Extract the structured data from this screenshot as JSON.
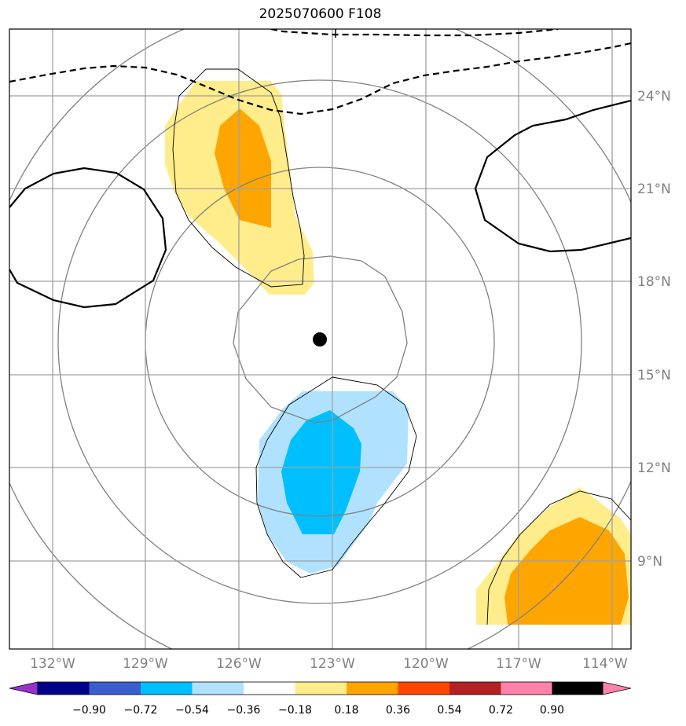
{
  "title": "2025070600 F108",
  "lat_ticks": [
    "24°N",
    "21°N",
    "18°N",
    "15°N",
    "12°N",
    "9°N"
  ],
  "lon_ticks": [
    "132°W",
    "129°W",
    "126°W",
    "123°W",
    "120°W",
    "117°W",
    "114°W"
  ],
  "center_marker": {
    "lat": 16.1,
    "lon": "123.4W"
  },
  "colorbar": {
    "labels": [
      "−0.90",
      "−0.72",
      "−0.54",
      "−0.36",
      "−0.18",
      "0.18",
      "0.36",
      "0.54",
      "0.72",
      "0.90"
    ],
    "colors": [
      "#9932cc",
      "#00008b",
      "#3a5fcd",
      "#00bfff",
      "#b0e2ff",
      "#ffffff",
      "#ffec8b",
      "#ffa500",
      "#ff4500",
      "#b22222",
      "#ff82ab"
    ]
  },
  "colors": {
    "grid": "#a0a0a0",
    "range_rings": "#808080",
    "yellow_fill": "#ffec8b",
    "orange_fill": "#ffa500",
    "lightblue_fill": "#b0e2ff",
    "blue_fill": "#00bfff"
  }
}
